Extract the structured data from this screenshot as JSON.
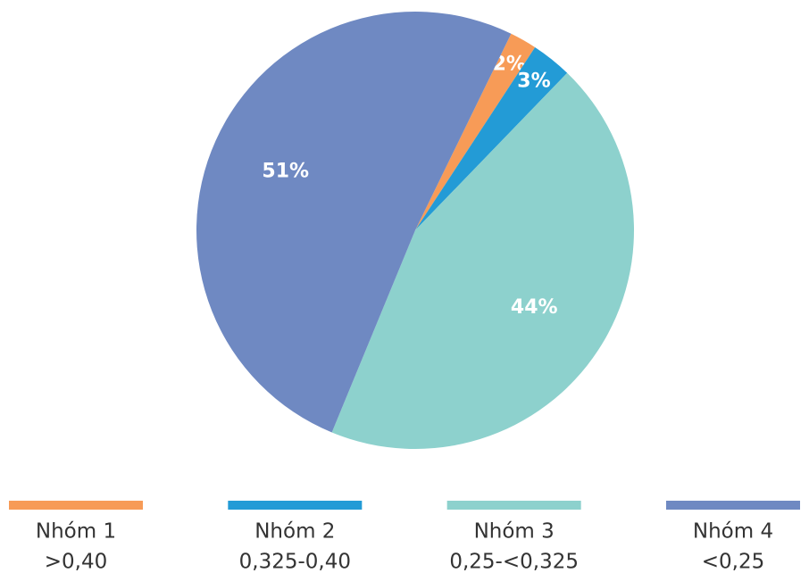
{
  "chart_data": {
    "type": "pie",
    "categories": [
      "Nhóm 1",
      "Nhóm 2",
      "Nhóm 3",
      "Nhóm 4"
    ],
    "ranges": [
      ">0,40",
      "0,325-0,40",
      "0,25-<0,325",
      "<0,25"
    ],
    "values": [
      2,
      3,
      44,
      51
    ],
    "value_labels": [
      "2%",
      "3%",
      "44%",
      "51%"
    ],
    "colors": [
      "#f79b57",
      "#239bd6",
      "#8dd1cd",
      "#6f89c2"
    ],
    "legend": "bottom"
  }
}
